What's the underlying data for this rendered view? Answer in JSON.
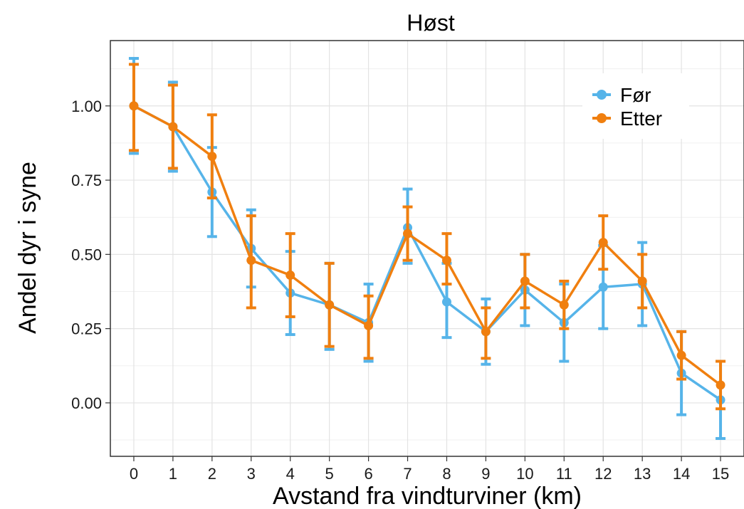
{
  "chart_data": {
    "type": "line",
    "title": "Høst",
    "xlabel": "Avstand fra vindturviner (km)",
    "ylabel": "Andel dyr i syne",
    "x": [
      0,
      1,
      2,
      3,
      4,
      5,
      6,
      7,
      8,
      9,
      10,
      11,
      12,
      13,
      14,
      15
    ],
    "x_tick_labels": [
      "0",
      "1",
      "2",
      "3",
      "4",
      "5",
      "6",
      "7",
      "8",
      "9",
      "10",
      "11",
      "12",
      "13",
      "14",
      "15"
    ],
    "y_ticks": [
      0.0,
      0.25,
      0.5,
      0.75,
      1.0
    ],
    "y_tick_labels": [
      "0.00",
      "0.25",
      "0.50",
      "0.75",
      "1.00"
    ],
    "xlim": [
      -0.6,
      15.6
    ],
    "ylim": [
      -0.18,
      1.22
    ],
    "grid": true,
    "legend_position": "top-right",
    "series": [
      {
        "name": "Før",
        "color": "#56B4E9",
        "values": [
          1.0,
          0.93,
          0.71,
          0.52,
          0.37,
          0.33,
          0.27,
          0.59,
          0.34,
          0.24,
          0.38,
          0.27,
          0.39,
          0.4,
          0.1,
          0.01
        ],
        "lower": [
          0.84,
          0.78,
          0.56,
          0.39,
          0.23,
          0.18,
          0.14,
          0.47,
          0.22,
          0.13,
          0.26,
          0.14,
          0.25,
          0.26,
          -0.04,
          -0.12
        ],
        "upper": [
          1.16,
          1.08,
          0.86,
          0.65,
          0.51,
          0.47,
          0.4,
          0.72,
          0.47,
          0.35,
          0.5,
          0.4,
          0.53,
          0.54,
          0.24,
          0.14
        ]
      },
      {
        "name": "Etter",
        "color": "#F07F0F",
        "values": [
          1.0,
          0.93,
          0.83,
          0.48,
          0.43,
          0.33,
          0.26,
          0.57,
          0.48,
          0.24,
          0.41,
          0.33,
          0.54,
          0.41,
          0.16,
          0.06
        ],
        "lower": [
          0.85,
          0.79,
          0.69,
          0.32,
          0.29,
          0.19,
          0.15,
          0.48,
          0.4,
          0.15,
          0.32,
          0.25,
          0.45,
          0.32,
          0.08,
          -0.02
        ],
        "upper": [
          1.14,
          1.07,
          0.97,
          0.63,
          0.57,
          0.47,
          0.36,
          0.66,
          0.57,
          0.32,
          0.5,
          0.41,
          0.63,
          0.5,
          0.24,
          0.14
        ]
      }
    ]
  }
}
